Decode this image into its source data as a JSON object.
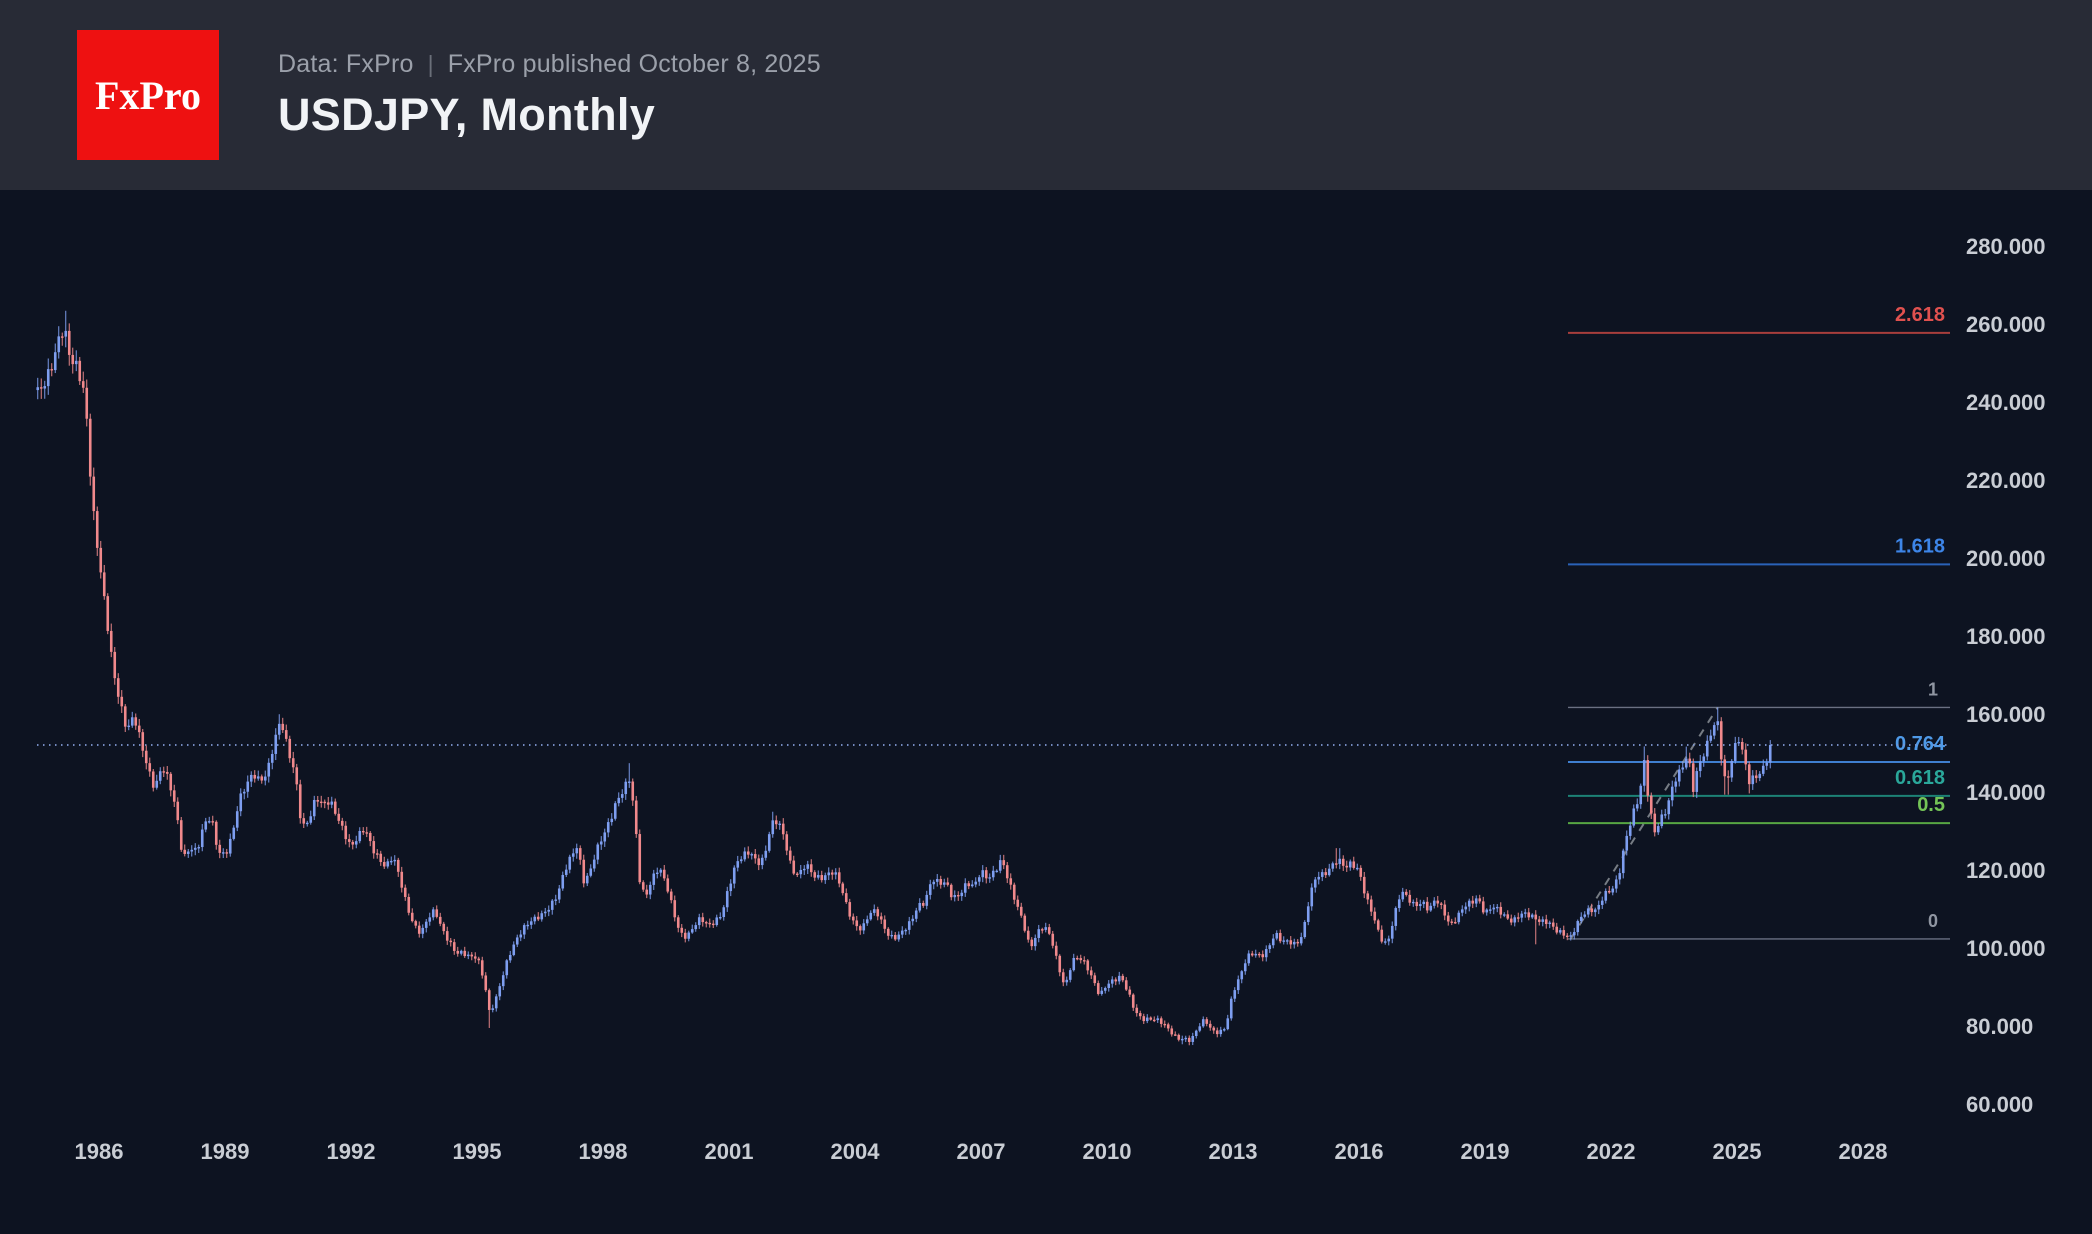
{
  "header": {
    "logo_text": "FxPro",
    "data_source": "Data: FxPro",
    "divider": "|",
    "published": "FxPro published October 8, 2025",
    "title": "USDJPY, Monthly"
  },
  "colors": {
    "header_bg": "#282b36",
    "chart_bg": "#0d1321",
    "logo_bg": "#ee1111",
    "axis_text": "#c9cdd4",
    "candle_up": "#7e9ef0",
    "candle_down": "#f0898c",
    "current_price_line": "#7d96cf",
    "trend_line": "#9aa0a6"
  },
  "chart_data": {
    "type": "candlestick",
    "title": "USDJPY, Monthly",
    "x_axis": {
      "labels": [
        "1986",
        "1989",
        "1992",
        "1995",
        "1998",
        "2001",
        "2004",
        "2007",
        "2010",
        "2013",
        "2016",
        "2019",
        "2022",
        "2025",
        "2028"
      ],
      "first_label_year": 1986,
      "step_years": 3
    },
    "y_axis": {
      "labels": [
        "280.000",
        "260.000",
        "240.000",
        "220.000",
        "200.000",
        "180.000",
        "160.000",
        "140.000",
        "120.000",
        "100.000",
        "80.000",
        "60.000"
      ],
      "min": 60,
      "max": 280,
      "step": 20
    },
    "series_start": 1984.5417,
    "series_end": 2025.7917,
    "current_price": 152.3,
    "fibonacci": {
      "anchor_low": {
        "time": 2021.04,
        "price": 102.59
      },
      "anchor_high": {
        "time": 2024.54,
        "price": 161.95
      },
      "levels": [
        {
          "ratio": "2.618",
          "price": 257.99,
          "label_color": "#e0514f",
          "line_color": "#a83e3c"
        },
        {
          "ratio": "1.618",
          "price": 198.63,
          "label_color": "#3d85e8",
          "line_color": "#2a62b8"
        },
        {
          "ratio": "1",
          "price": 161.95,
          "label_color": "#9096a2",
          "line_color": "#6a7082"
        },
        {
          "ratio": "0.764",
          "price": 147.94,
          "label_color": "#4f9ae8",
          "line_color": "#3f7fd0"
        },
        {
          "ratio": "0.618",
          "price": 139.27,
          "label_color": "#2aa79a",
          "line_color": "#1d8276"
        },
        {
          "ratio": "0.5",
          "price": 132.27,
          "label_color": "#74c457",
          "line_color": "#57a743"
        },
        {
          "ratio": "0",
          "price": 102.59,
          "label_color": "#9096a2",
          "line_color": "#6a7082"
        }
      ]
    },
    "price_path_anchors": [
      [
        1984.58,
        243
      ],
      [
        1984.75,
        246
      ],
      [
        1984.92,
        251
      ],
      [
        1985.08,
        258
      ],
      [
        1985.17,
        259
      ],
      [
        1985.33,
        251
      ],
      [
        1985.5,
        249
      ],
      [
        1985.67,
        241
      ],
      [
        1985.75,
        230
      ],
      [
        1985.83,
        215
      ],
      [
        1986.0,
        200
      ],
      [
        1986.17,
        186
      ],
      [
        1986.33,
        172
      ],
      [
        1986.5,
        163
      ],
      [
        1986.67,
        156
      ],
      [
        1986.83,
        160
      ],
      [
        1987.0,
        153
      ],
      [
        1987.17,
        146
      ],
      [
        1987.33,
        141
      ],
      [
        1987.5,
        147
      ],
      [
        1987.67,
        143
      ],
      [
        1987.83,
        136
      ],
      [
        1988.0,
        123
      ],
      [
        1988.17,
        126
      ],
      [
        1988.33,
        125
      ],
      [
        1988.5,
        132
      ],
      [
        1988.67,
        134
      ],
      [
        1988.83,
        125
      ],
      [
        1989.0,
        124
      ],
      [
        1989.17,
        129
      ],
      [
        1989.33,
        138
      ],
      [
        1989.5,
        142
      ],
      [
        1989.67,
        145
      ],
      [
        1989.83,
        143
      ],
      [
        1990.0,
        145
      ],
      [
        1990.17,
        153
      ],
      [
        1990.33,
        159
      ],
      [
        1990.5,
        151
      ],
      [
        1990.67,
        145
      ],
      [
        1990.83,
        131
      ],
      [
        1991.0,
        133
      ],
      [
        1991.17,
        139
      ],
      [
        1991.33,
        137
      ],
      [
        1991.5,
        138
      ],
      [
        1991.67,
        134
      ],
      [
        1991.83,
        130
      ],
      [
        1992.0,
        126
      ],
      [
        1992.17,
        129
      ],
      [
        1992.33,
        131
      ],
      [
        1992.5,
        126
      ],
      [
        1992.67,
        123
      ],
      [
        1992.83,
        121
      ],
      [
        1993.0,
        124
      ],
      [
        1993.17,
        118
      ],
      [
        1993.33,
        111
      ],
      [
        1993.5,
        106
      ],
      [
        1993.67,
        104
      ],
      [
        1993.83,
        108
      ],
      [
        1994.0,
        110
      ],
      [
        1994.17,
        105
      ],
      [
        1994.33,
        102
      ],
      [
        1994.5,
        99
      ],
      [
        1994.67,
        99
      ],
      [
        1994.83,
        98
      ],
      [
        1995.0,
        98
      ],
      [
        1995.17,
        92
      ],
      [
        1995.29,
        84
      ],
      [
        1995.42,
        86
      ],
      [
        1995.58,
        92
      ],
      [
        1995.75,
        98
      ],
      [
        1995.92,
        102
      ],
      [
        1996.08,
        105
      ],
      [
        1996.25,
        107
      ],
      [
        1996.42,
        108
      ],
      [
        1996.58,
        109
      ],
      [
        1996.75,
        111
      ],
      [
        1996.92,
        114
      ],
      [
        1997.08,
        120
      ],
      [
        1997.25,
        124
      ],
      [
        1997.42,
        127
      ],
      [
        1997.5,
        117
      ],
      [
        1997.67,
        119
      ],
      [
        1997.83,
        125
      ],
      [
        1998.0,
        129
      ],
      [
        1998.17,
        133
      ],
      [
        1998.33,
        138
      ],
      [
        1998.5,
        141
      ],
      [
        1998.62,
        144
      ],
      [
        1998.75,
        135
      ],
      [
        1998.87,
        118
      ],
      [
        1999.0,
        113
      ],
      [
        1999.17,
        118
      ],
      [
        1999.33,
        121
      ],
      [
        1999.5,
        117
      ],
      [
        1999.67,
        110
      ],
      [
        1999.83,
        104
      ],
      [
        2000.0,
        103
      ],
      [
        2000.17,
        106
      ],
      [
        2000.33,
        108
      ],
      [
        2000.5,
        106
      ],
      [
        2000.67,
        107
      ],
      [
        2000.83,
        109
      ],
      [
        2001.0,
        116
      ],
      [
        2001.17,
        122
      ],
      [
        2001.33,
        124
      ],
      [
        2001.5,
        125
      ],
      [
        2001.67,
        122
      ],
      [
        2001.83,
        123
      ],
      [
        2002.0,
        132
      ],
      [
        2002.17,
        133
      ],
      [
        2002.33,
        128
      ],
      [
        2002.5,
        120
      ],
      [
        2002.67,
        119
      ],
      [
        2002.83,
        122
      ],
      [
        2003.0,
        119
      ],
      [
        2003.17,
        118
      ],
      [
        2003.33,
        119
      ],
      [
        2003.5,
        120
      ],
      [
        2003.67,
        116
      ],
      [
        2003.83,
        110
      ],
      [
        2004.0,
        106
      ],
      [
        2004.17,
        105
      ],
      [
        2004.33,
        109
      ],
      [
        2004.5,
        110
      ],
      [
        2004.67,
        106
      ],
      [
        2004.83,
        103
      ],
      [
        2005.0,
        103
      ],
      [
        2005.17,
        105
      ],
      [
        2005.33,
        107
      ],
      [
        2005.5,
        111
      ],
      [
        2005.67,
        112
      ],
      [
        2005.83,
        118
      ],
      [
        2006.0,
        117
      ],
      [
        2006.17,
        117
      ],
      [
        2006.33,
        113
      ],
      [
        2006.5,
        114
      ],
      [
        2006.67,
        117
      ],
      [
        2006.83,
        116
      ],
      [
        2007.0,
        120
      ],
      [
        2007.17,
        118
      ],
      [
        2007.33,
        120
      ],
      [
        2007.5,
        123
      ],
      [
        2007.67,
        117
      ],
      [
        2007.83,
        112
      ],
      [
        2008.0,
        107
      ],
      [
        2008.17,
        100
      ],
      [
        2008.33,
        104
      ],
      [
        2008.5,
        106
      ],
      [
        2008.67,
        103
      ],
      [
        2008.83,
        96
      ],
      [
        2009.0,
        90
      ],
      [
        2009.17,
        97
      ],
      [
        2009.33,
        98
      ],
      [
        2009.5,
        96
      ],
      [
        2009.67,
        92
      ],
      [
        2009.83,
        88
      ],
      [
        2010.0,
        91
      ],
      [
        2010.17,
        92
      ],
      [
        2010.33,
        93
      ],
      [
        2010.5,
        89
      ],
      [
        2010.67,
        84
      ],
      [
        2010.83,
        82
      ],
      [
        2011.0,
        82
      ],
      [
        2011.17,
        82
      ],
      [
        2011.33,
        81
      ],
      [
        2011.5,
        79
      ],
      [
        2011.67,
        77
      ],
      [
        2011.83,
        77
      ],
      [
        2012.0,
        76.5
      ],
      [
        2012.17,
        80
      ],
      [
        2012.33,
        82
      ],
      [
        2012.5,
        79
      ],
      [
        2012.67,
        78.5
      ],
      [
        2012.83,
        80
      ],
      [
        2013.0,
        89
      ],
      [
        2013.17,
        93
      ],
      [
        2013.33,
        98
      ],
      [
        2013.5,
        99
      ],
      [
        2013.67,
        98
      ],
      [
        2013.83,
        100
      ],
      [
        2014.0,
        104
      ],
      [
        2014.17,
        102
      ],
      [
        2014.33,
        102
      ],
      [
        2014.5,
        101
      ],
      [
        2014.67,
        104
      ],
      [
        2014.83,
        114
      ],
      [
        2015.0,
        119
      ],
      [
        2015.17,
        119
      ],
      [
        2015.33,
        121
      ],
      [
        2015.5,
        123
      ],
      [
        2015.67,
        121
      ],
      [
        2015.83,
        122
      ],
      [
        2016.0,
        120
      ],
      [
        2016.17,
        113
      ],
      [
        2016.33,
        109
      ],
      [
        2016.5,
        103
      ],
      [
        2016.67,
        101
      ],
      [
        2016.83,
        108
      ],
      [
        2017.0,
        115
      ],
      [
        2017.17,
        113
      ],
      [
        2017.33,
        111
      ],
      [
        2017.5,
        112
      ],
      [
        2017.67,
        110
      ],
      [
        2017.83,
        113
      ],
      [
        2018.0,
        110
      ],
      [
        2018.17,
        106
      ],
      [
        2018.33,
        108
      ],
      [
        2018.5,
        111
      ],
      [
        2018.67,
        112
      ],
      [
        2018.83,
        113
      ],
      [
        2019.0,
        109
      ],
      [
        2019.17,
        111
      ],
      [
        2019.33,
        110
      ],
      [
        2019.5,
        108
      ],
      [
        2019.67,
        107
      ],
      [
        2019.83,
        109
      ],
      [
        2020.0,
        109
      ],
      [
        2020.17,
        108
      ],
      [
        2020.33,
        107
      ],
      [
        2020.5,
        107
      ],
      [
        2020.67,
        105
      ],
      [
        2020.83,
        104
      ],
      [
        2021.04,
        103
      ],
      [
        2021.17,
        106
      ],
      [
        2021.33,
        109
      ],
      [
        2021.5,
        110
      ],
      [
        2021.67,
        110
      ],
      [
        2021.83,
        114
      ],
      [
        2022.0,
        115
      ],
      [
        2022.17,
        118
      ],
      [
        2022.33,
        127
      ],
      [
        2022.5,
        134
      ],
      [
        2022.67,
        139
      ],
      [
        2022.79,
        148
      ],
      [
        2022.92,
        136
      ],
      [
        2023.04,
        130
      ],
      [
        2023.17,
        133
      ],
      [
        2023.33,
        136
      ],
      [
        2023.5,
        143
      ],
      [
        2023.67,
        146
      ],
      [
        2023.83,
        150
      ],
      [
        2023.96,
        141
      ],
      [
        2024.08,
        147
      ],
      [
        2024.25,
        151
      ],
      [
        2024.42,
        157
      ],
      [
        2024.54,
        158
      ],
      [
        2024.67,
        145
      ],
      [
        2024.75,
        142
      ],
      [
        2024.92,
        151
      ],
      [
        2025.04,
        154
      ],
      [
        2025.17,
        149
      ],
      [
        2025.29,
        143
      ],
      [
        2025.42,
        144
      ],
      [
        2025.54,
        145
      ],
      [
        2025.67,
        147
      ],
      [
        2025.79,
        152.3
      ]
    ],
    "extremes": [
      [
        1985.17,
        "high",
        263.65
      ],
      [
        1990.33,
        "high",
        160.2
      ],
      [
        1995.29,
        "low",
        79.75
      ],
      [
        1998.62,
        "high",
        147.65
      ],
      [
        2002.08,
        "high",
        135.2
      ],
      [
        2007.5,
        "high",
        124.14
      ],
      [
        2011.83,
        "low",
        75.57
      ],
      [
        2015.5,
        "high",
        125.86
      ],
      [
        2020.17,
        "low",
        101.2
      ],
      [
        2022.79,
        "high",
        151.95
      ],
      [
        2023.83,
        "high",
        151.9
      ],
      [
        2024.54,
        "high",
        161.95
      ],
      [
        2024.75,
        "low",
        139.58
      ],
      [
        2025.29,
        "low",
        139.89
      ]
    ]
  }
}
